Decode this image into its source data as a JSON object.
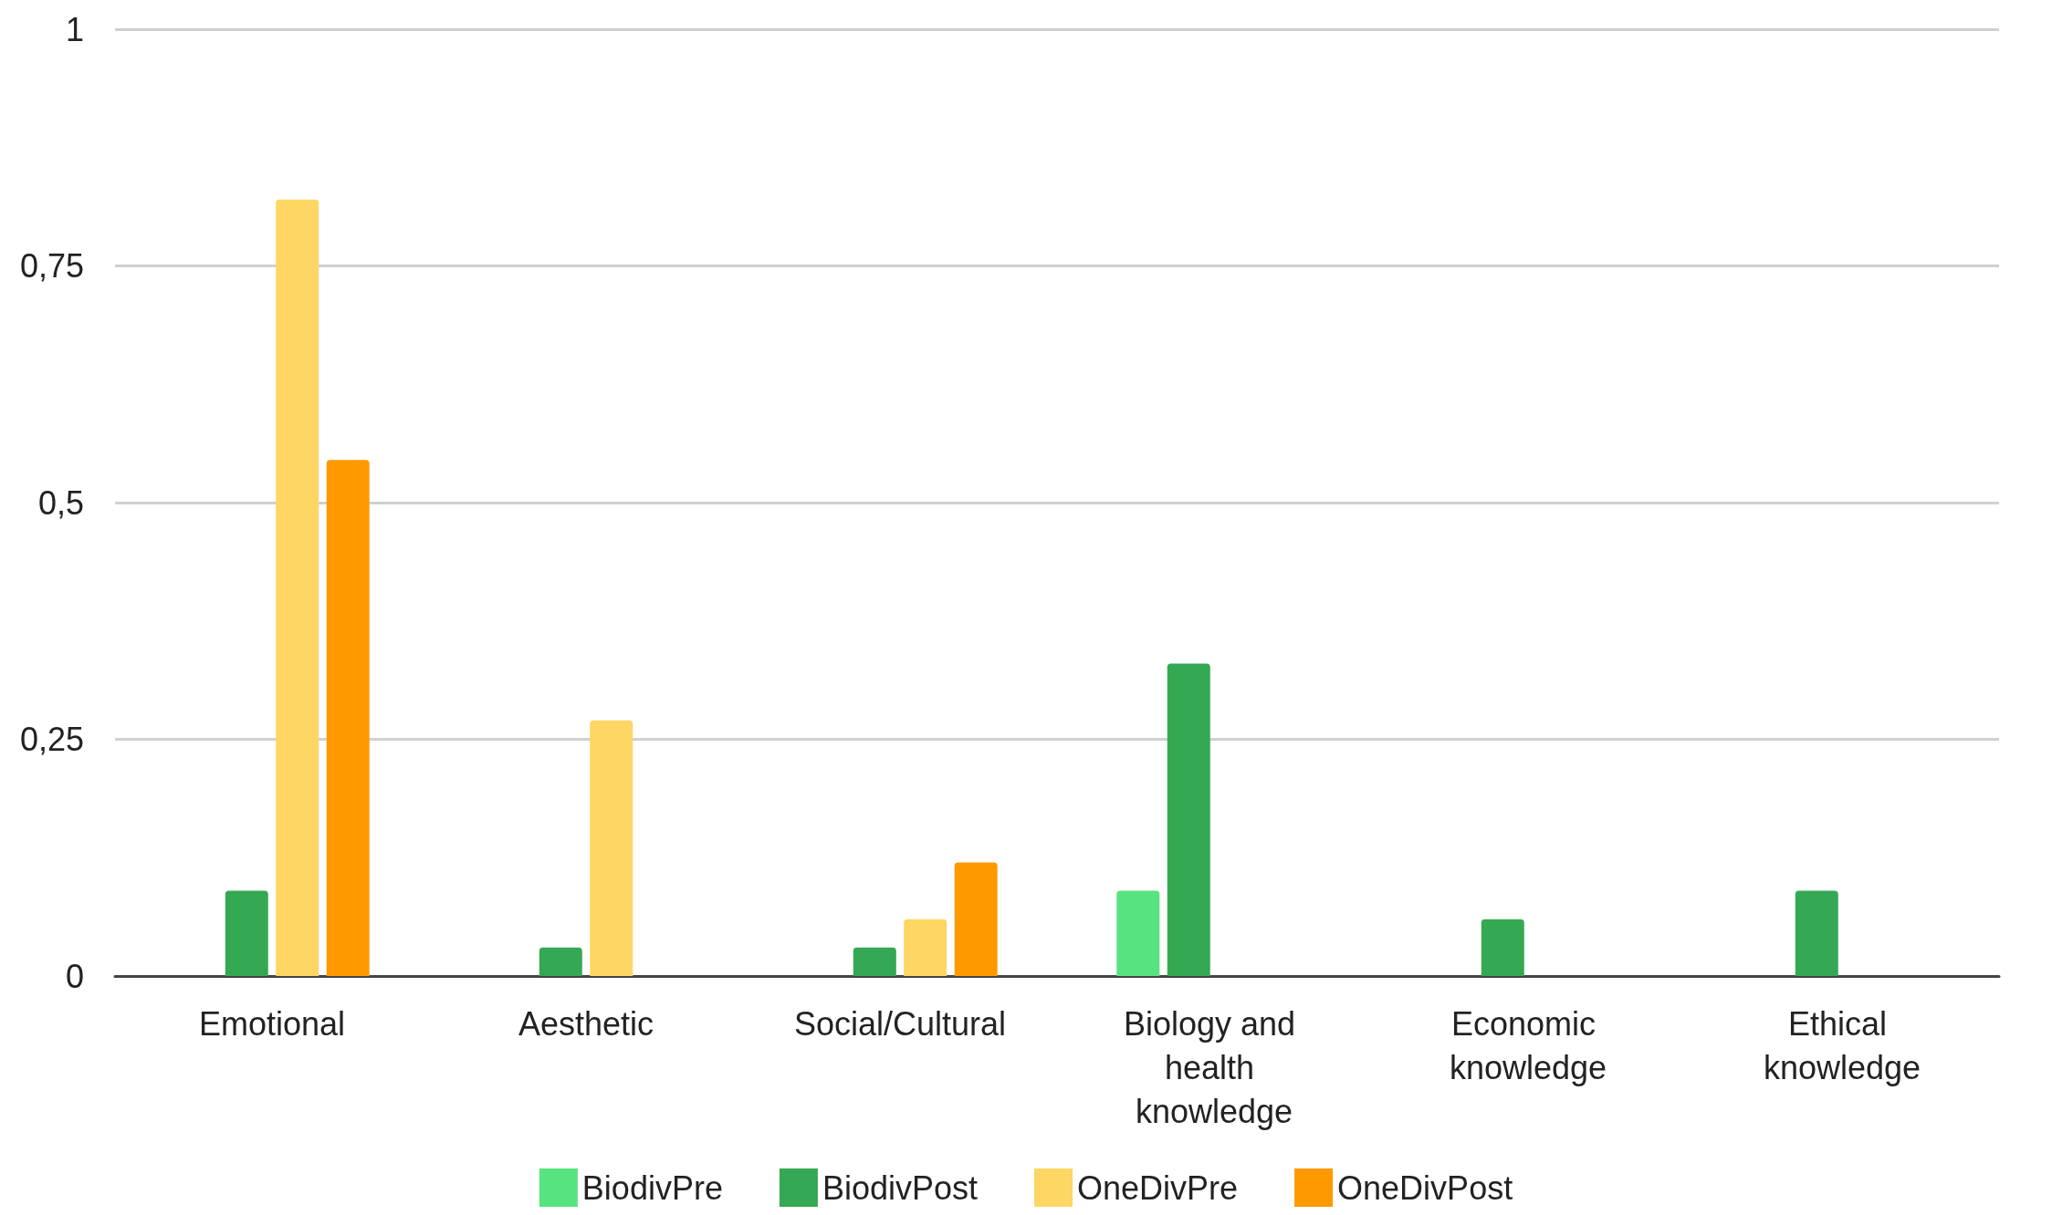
{
  "chart_data": {
    "type": "bar",
    "categories": [
      "Emotional",
      "Aesthetic",
      "Social/Cultural",
      "Biology and health knowledge",
      "Economic knowledge",
      "Ethical knowledge"
    ],
    "series": [
      {
        "name": "BiodivPre",
        "color": "#57e37f",
        "values": [
          0,
          0,
          0,
          0.09,
          0,
          0
        ]
      },
      {
        "name": "BiodivPost",
        "color": "#34a853",
        "values": [
          0.09,
          0.03,
          0.03,
          0.33,
          0.06,
          0.09
        ]
      },
      {
        "name": "OneDivPre",
        "color": "#fdd663",
        "values": [
          0.82,
          0.27,
          0.06,
          0,
          0,
          0
        ]
      },
      {
        "name": "OneDivPost",
        "color": "#ff9900",
        "values": [
          0.545,
          0,
          0.12,
          0,
          0,
          0
        ]
      }
    ],
    "ylim": [
      0,
      1
    ],
    "yticks": [
      0,
      {
        "value": 0.25,
        "label": "0,25"
      },
      {
        "value": 0.5,
        "label": "0,5"
      },
      {
        "value": 0.75,
        "label": "0,75"
      },
      1
    ],
    "grid": "y",
    "legend": "bottom"
  }
}
